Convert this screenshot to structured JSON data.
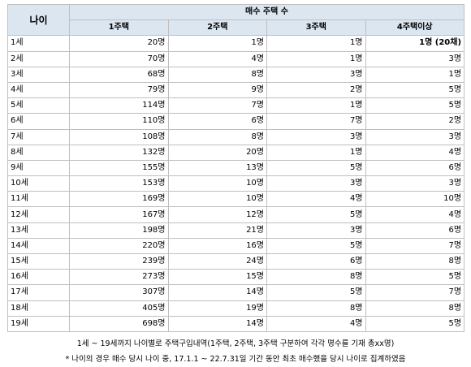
{
  "table": {
    "age_header": "나이",
    "group_header": "매수 주택 수",
    "columns": [
      "1주택",
      "2주택",
      "3주택",
      "4주택이상"
    ],
    "rows": [
      {
        "age": "1세",
        "cells": [
          "20명",
          "1명",
          "1명",
          "1명 (20채)"
        ]
      },
      {
        "age": "2세",
        "cells": [
          "70명",
          "4명",
          "1명",
          "3명"
        ]
      },
      {
        "age": "3세",
        "cells": [
          "68명",
          "8명",
          "3명",
          "1명"
        ]
      },
      {
        "age": "4세",
        "cells": [
          "79명",
          "9명",
          "2명",
          "5명"
        ]
      },
      {
        "age": "5세",
        "cells": [
          "114명",
          "7명",
          "1명",
          "5명"
        ]
      },
      {
        "age": "6세",
        "cells": [
          "110명",
          "6명",
          "7명",
          "2명"
        ]
      },
      {
        "age": "7세",
        "cells": [
          "108명",
          "8명",
          "3명",
          "3명"
        ]
      },
      {
        "age": "8세",
        "cells": [
          "132명",
          "20명",
          "1명",
          "4명"
        ]
      },
      {
        "age": "9세",
        "cells": [
          "155명",
          "13명",
          "5명",
          "6명"
        ]
      },
      {
        "age": "10세",
        "cells": [
          "153명",
          "10명",
          "3명",
          "3명"
        ]
      },
      {
        "age": "11세",
        "cells": [
          "169명",
          "10명",
          "4명",
          "10명"
        ]
      },
      {
        "age": "12세",
        "cells": [
          "167명",
          "12명",
          "5명",
          "4명"
        ]
      },
      {
        "age": "13세",
        "cells": [
          "198명",
          "21명",
          "3명",
          "6명"
        ]
      },
      {
        "age": "14세",
        "cells": [
          "220명",
          "16명",
          "5명",
          "7명"
        ]
      },
      {
        "age": "15세",
        "cells": [
          "239명",
          "24명",
          "6명",
          "8명"
        ]
      },
      {
        "age": "16세",
        "cells": [
          "273명",
          "15명",
          "8명",
          "5명"
        ]
      },
      {
        "age": "17세",
        "cells": [
          "307명",
          "14명",
          "5명",
          "7명"
        ]
      },
      {
        "age": "18세",
        "cells": [
          "405명",
          "19명",
          "8명",
          "8명"
        ]
      },
      {
        "age": "19세",
        "cells": [
          "698명",
          "14명",
          "4명",
          "5명"
        ]
      }
    ],
    "bold_cells": [
      [
        0,
        3
      ]
    ]
  },
  "notes": {
    "line1": "1세 ~ 19세까지 나이별로 주택구입내역(1주택, 2주택, 3주택 구분하여 각각 명수를 기재 총xx명)",
    "line2": "* 나이의 경우 매수 당시 나이 중, 17.1.1 ~ 22.7.31일 기간 동안 최초 매수했을 당시 나이로 집계하였음"
  },
  "colors": {
    "header_bg": "#dce6f1",
    "border": "#bfbfbf"
  }
}
